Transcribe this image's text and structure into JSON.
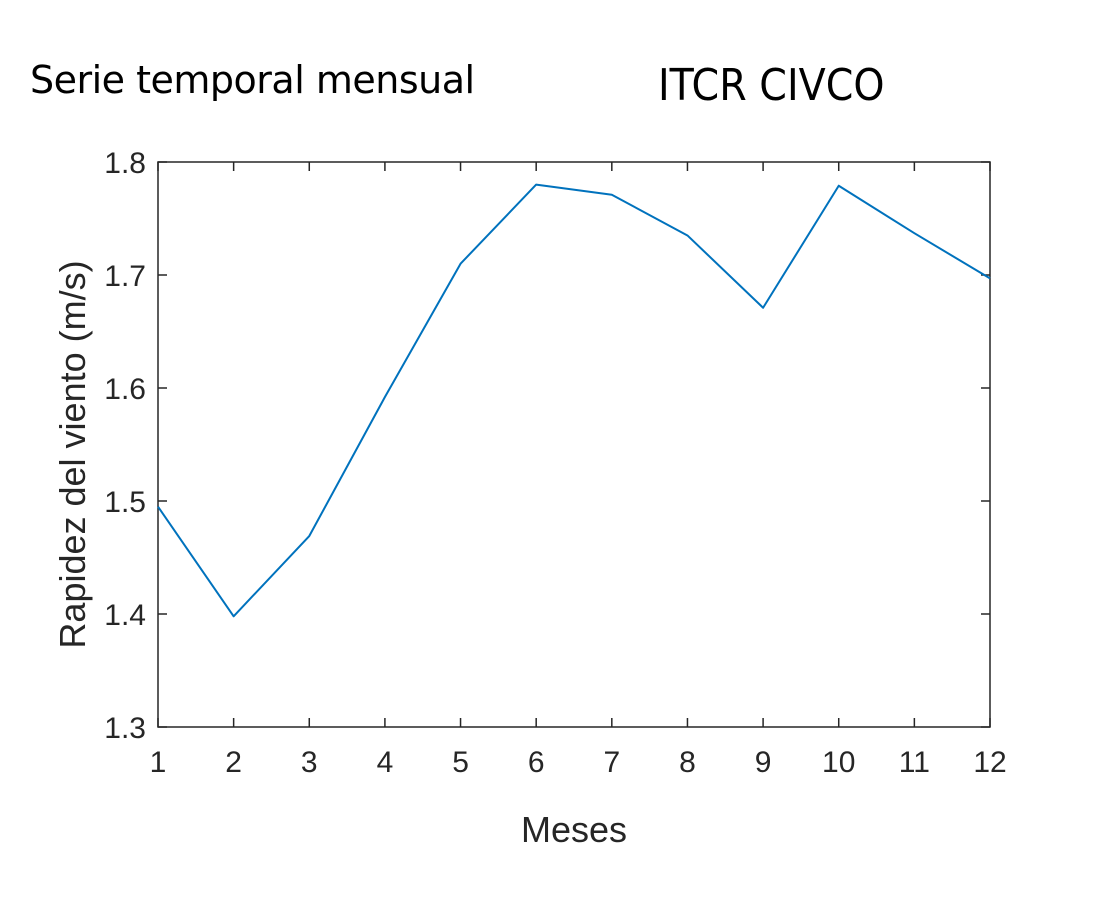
{
  "header": {
    "left_title": "Serie temporal mensual",
    "right_title": "ITCR CIVCO"
  },
  "chart_data": {
    "type": "line",
    "title": "",
    "xlabel": "Meses",
    "ylabel": "Rapidez del viento (m/s)",
    "x": [
      1,
      2,
      3,
      4,
      5,
      6,
      7,
      8,
      9,
      10,
      11,
      12
    ],
    "series": [
      {
        "values": [
          1.495,
          1.398,
          1.469,
          1.592,
          1.71,
          1.78,
          1.771,
          1.735,
          1.671,
          1.779,
          1.737,
          1.697
        ],
        "color": "#0072bd"
      }
    ],
    "xlim": [
      1,
      12
    ],
    "ylim": [
      1.3,
      1.8
    ],
    "xticks": [
      "1",
      "2",
      "3",
      "4",
      "5",
      "6",
      "7",
      "8",
      "9",
      "10",
      "11",
      "12"
    ],
    "yticks": [
      "1.3",
      "1.4",
      "1.5",
      "1.6",
      "1.7",
      "1.8"
    ],
    "grid": false,
    "axis_color": "#262626"
  }
}
